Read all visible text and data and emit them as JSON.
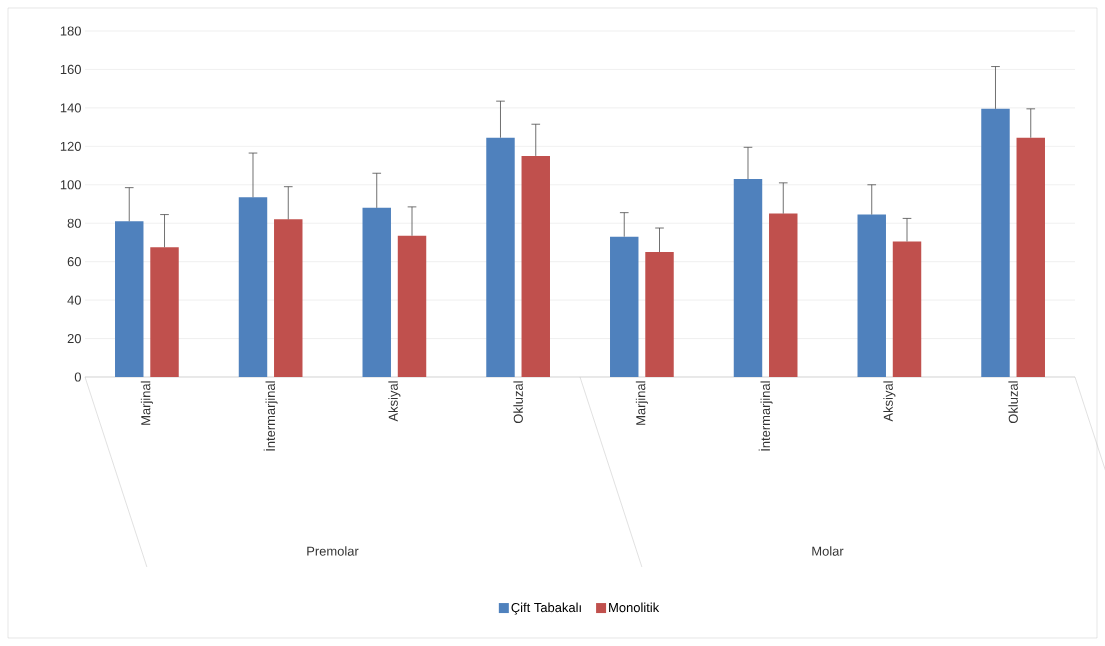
{
  "chart_data": {
    "type": "bar",
    "categories": [
      "Marjinal",
      "İntermarjinal",
      "Aksiyal",
      "Okluzal",
      "Marjinal",
      "İntermarjinal",
      "Aksiyal",
      "Okluzal"
    ],
    "series": [
      {
        "name": "Çift Tabakalı",
        "color": "#4f81bd",
        "values": [
          81,
          93.5,
          88,
          124.5,
          73,
          103,
          84.5,
          139.5
        ],
        "errors": [
          [
            81,
            98.5
          ],
          [
            93.5,
            116.5
          ],
          [
            88,
            106
          ],
          [
            124.5,
            143.5
          ],
          [
            73,
            85.5
          ],
          [
            103,
            119.5
          ],
          [
            84.5,
            100
          ],
          [
            139.5,
            161.5
          ]
        ]
      },
      {
        "name": "Monolitik",
        "color": "#c0504d",
        "values": [
          67.5,
          82,
          73.5,
          115,
          65,
          85,
          70.5,
          124.5
        ],
        "errors": [
          [
            67.5,
            84.5
          ],
          [
            82,
            99
          ],
          [
            73.5,
            88.5
          ],
          [
            115,
            131.5
          ],
          [
            65,
            77.5
          ],
          [
            85,
            101
          ],
          [
            70.5,
            82.5
          ],
          [
            124.5,
            139.5
          ]
        ]
      }
    ],
    "annotations": [
      "Premolar",
      "Molar"
    ],
    "ylim": [
      0,
      180
    ],
    "yticks": [
      0,
      20,
      40,
      60,
      80,
      100,
      120,
      140,
      160,
      180
    ],
    "grid": "y",
    "legend": "bottom"
  }
}
